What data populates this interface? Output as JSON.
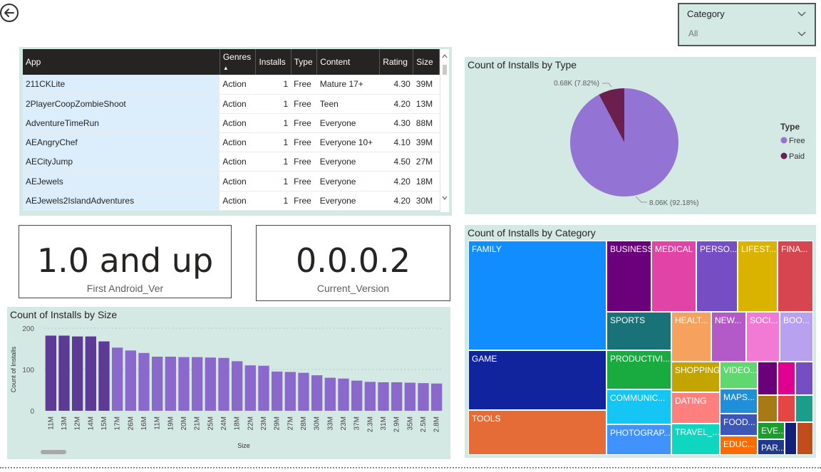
{
  "slicer": {
    "title": "Category",
    "value": "All"
  },
  "table": {
    "headers": [
      "App",
      "Genres",
      "Installs",
      "Type",
      "Content",
      "Rating",
      "Size"
    ],
    "rows": [
      [
        "211CKLite",
        "Action",
        "1",
        "Free",
        "Mature 17+",
        "4.30",
        "39M"
      ],
      [
        "2PlayerCoopZombieShoot",
        "Action",
        "1",
        "Free",
        "Teen",
        "4.20",
        "13M"
      ],
      [
        "AdventureTimeRun",
        "Action",
        "1",
        "Free",
        "Everyone",
        "4.30",
        "88M"
      ],
      [
        "AEAngryChef",
        "Action",
        "1",
        "Free",
        "Everyone 10+",
        "4.10",
        "39M"
      ],
      [
        "AECityJump",
        "Action",
        "1",
        "Free",
        "Everyone",
        "4.50",
        "27M"
      ],
      [
        "AEJewels",
        "Action",
        "1",
        "Free",
        "Everyone",
        "4.20",
        "18M"
      ],
      [
        "AEJewels2IslandAdventures",
        "Action",
        "1",
        "Free",
        "Everyone",
        "4.20",
        "30M"
      ]
    ]
  },
  "cards": [
    {
      "value": "1.0 and up",
      "label": "First Android_Ver"
    },
    {
      "value": "0.0.0.2",
      "label": "Current_Version"
    }
  ],
  "colors": {
    "panel": "#d4e8e4",
    "bar": "#8b68cc",
    "bar_dark": "#5c3a96",
    "free": "#9374d4",
    "paid": "#6b1f4f"
  },
  "chart_data": [
    {
      "type": "bar",
      "title": "Count of Installs by Size",
      "xlabel": "Size",
      "ylabel": "Count of Installs",
      "ylim": [
        0,
        200
      ],
      "yticks": [
        "0",
        "100",
        "200"
      ],
      "categories": [
        "11M",
        "13M",
        "12M",
        "14M",
        "15M",
        "17M",
        "26M",
        "16M",
        "11M",
        "19M",
        "20M",
        "21M",
        "25M",
        "24M",
        "18M",
        "22M",
        "23M",
        "29M",
        "27M",
        "28M",
        "30M",
        "33M",
        "23M",
        "37M",
        "2.3M",
        "31M",
        "2.9M",
        "35M",
        "2.5M",
        "2.8M"
      ],
      "values": [
        182,
        182,
        180,
        180,
        168,
        153,
        146,
        140,
        131,
        131,
        130,
        130,
        129,
        128,
        120,
        110,
        109,
        95,
        94,
        92,
        86,
        80,
        78,
        73,
        70,
        69,
        69,
        68,
        67,
        66
      ]
    },
    {
      "type": "pie",
      "title": "Count of Installs by Type",
      "legend_title": "Type",
      "legend_position": "right",
      "slices": [
        {
          "name": "Free",
          "value": 8.06,
          "label": "8.06K (92.18%)",
          "color": "#9374d4"
        },
        {
          "name": "Paid",
          "value": 0.68,
          "label": "0.68K (7.82%)",
          "color": "#6b1f4f"
        }
      ]
    },
    {
      "type": "treemap",
      "title": "Count of Installs by Category",
      "items": [
        {
          "label": "FAMILY",
          "color": "#118dff"
        },
        {
          "label": "GAME",
          "color": "#12239e"
        },
        {
          "label": "TOOLS",
          "color": "#e66c37"
        },
        {
          "label": "BUSINESS",
          "color": "#6b007b"
        },
        {
          "label": "MEDICAL",
          "color": "#e044a7"
        },
        {
          "label": "PERSO...",
          "color": "#744ec2"
        },
        {
          "label": "LIFEST...",
          "color": "#d9b300"
        },
        {
          "label": "FINA...",
          "color": "#d64550"
        },
        {
          "label": "SPORTS",
          "color": "#197278"
        },
        {
          "label": "HEALT...",
          "color": "#f7a15e"
        },
        {
          "label": "NEW...",
          "color": "#b45ac8"
        },
        {
          "label": "SOCI...",
          "color": "#f07ad4"
        },
        {
          "label": "BOO...",
          "color": "#b8a2f0"
        },
        {
          "label": "PRODUCTIVI...",
          "color": "#1aab40"
        },
        {
          "label": "SHOPPING",
          "color": "#c4a400"
        },
        {
          "label": "VIDEO...",
          "color": "#5fd86f"
        },
        {
          "label": "COMMUNIC...",
          "color": "#15c6f4"
        },
        {
          "label": "DATING",
          "color": "#ff7f7f"
        },
        {
          "label": "MAPS...",
          "color": "#1e8fd8"
        },
        {
          "label": "PHOTOGRAP...",
          "color": "#4092ff"
        },
        {
          "label": "TRAVEL_...",
          "color": "#0fd6c1"
        },
        {
          "label": "FOOD...",
          "color": "#3c57b8"
        },
        {
          "label": "EDUC...",
          "color": "#fe6c00"
        },
        {
          "label": "EVE...",
          "color": "#1a9e2b"
        },
        {
          "label": "PAR...",
          "color": "#1f3a8c"
        }
      ]
    }
  ]
}
